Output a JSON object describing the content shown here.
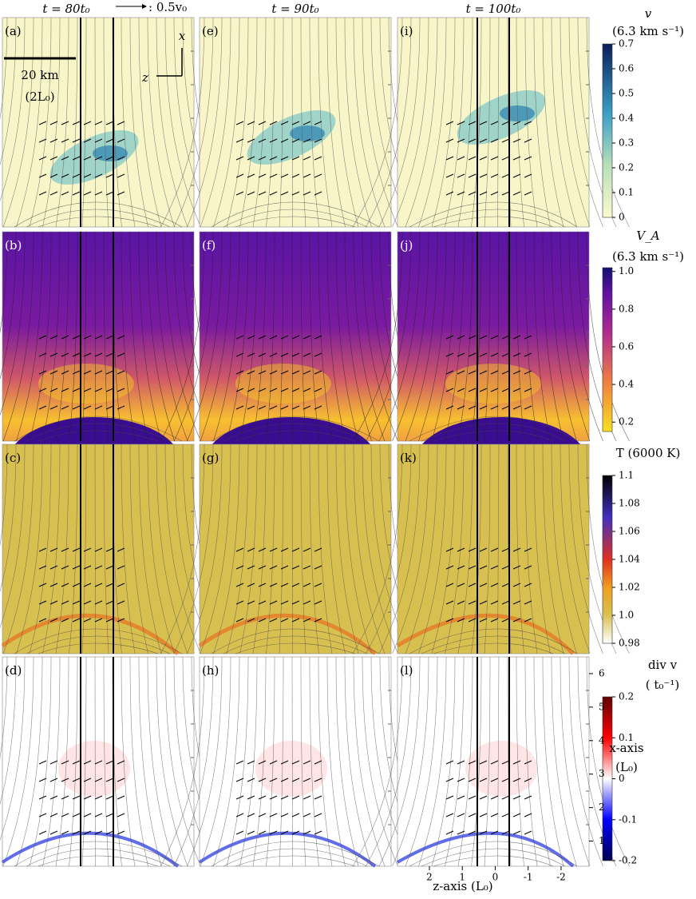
{
  "columns": [
    "t = 80t₀",
    "t = 90t₀",
    "t = 100t₀"
  ],
  "vector_legend": ": 0.5v₀",
  "panels": [
    [
      "(a)",
      "(e)",
      "(i)"
    ],
    [
      "(b)",
      "(f)",
      "(j)"
    ],
    [
      "(c)",
      "(g)",
      "(k)"
    ],
    [
      "(d)",
      "(h)",
      "(l)"
    ]
  ],
  "scale_bar": {
    "length": "20 km",
    "unit": "(2L₀)"
  },
  "orientation": {
    "x": "x",
    "z": "z"
  },
  "colorbars": [
    {
      "label": [
        "v",
        "(6.3 km s⁻¹)"
      ],
      "lim": [
        0,
        0.7
      ],
      "ticks": [
        0,
        0.1,
        0.2,
        0.3,
        0.4,
        0.5,
        0.6,
        0.7
      ]
    },
    {
      "label": [
        "V_A",
        "(6.3 km s⁻¹)"
      ],
      "lim": [
        0.15,
        1.02
      ],
      "ticks": [
        0.2,
        0.4,
        0.6,
        0.8,
        {
          "value": 1,
          "label": "1.0"
        }
      ]
    },
    {
      "label": [
        "T (6000 K)"
      ],
      "lim": [
        0.98,
        1.1
      ],
      "ticks": [
        0.98,
        {
          "value": 1,
          "label": "1.0"
        },
        1.02,
        1.04,
        1.06,
        1.08,
        1.1
      ]
    },
    {
      "label": [
        "div v",
        "( t₀⁻¹)"
      ],
      "lim": [
        -0.2,
        0.2
      ],
      "ticks": [
        -0.2,
        -0.1,
        0,
        0.1,
        0.2
      ]
    }
  ],
  "x_axis": {
    "label": [
      "x-axis",
      "(L₀)"
    ],
    "lim": [
      0.25,
      6.5
    ],
    "ticks": [
      1,
      2,
      3,
      4,
      5,
      6
    ]
  },
  "z_axis": {
    "label": "z-axis (L₀)",
    "lim": [
      2.97,
      -2.85
    ],
    "ticks": [
      2,
      1,
      0,
      -1,
      -2
    ]
  }
}
